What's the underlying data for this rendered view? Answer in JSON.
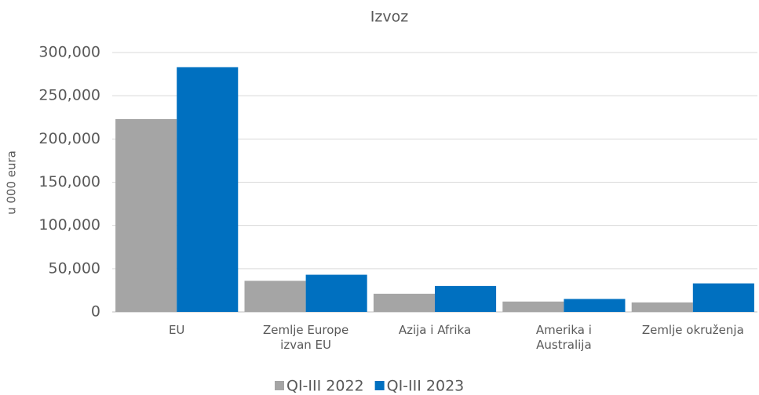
{
  "chart_data": {
    "type": "bar",
    "title": "Izvoz",
    "y_label": "u 000 eura",
    "categories": [
      "EU",
      "Zemlje Europe izvan EU",
      "Azija i Afrika",
      "Amerika i Australija",
      "Zemlje okruženja"
    ],
    "series": [
      {
        "name": "QI-III 2022",
        "color": "#a5a5a5",
        "values": [
          223000,
          36000,
          21000,
          12000,
          11000
        ]
      },
      {
        "name": "QI-III 2023",
        "color": "#0070c0",
        "values": [
          283000,
          43000,
          30000,
          15000,
          33000
        ]
      }
    ],
    "ylim": [
      0,
      300000
    ],
    "yticks": [
      0,
      {
        "value": 50000,
        "label": "50,000"
      },
      {
        "value": 100000,
        "label": "100,000"
      },
      {
        "value": 150000,
        "label": "150,000"
      },
      {
        "value": 200000,
        "label": "200,000"
      },
      {
        "value": 250000,
        "label": "250,000"
      },
      {
        "value": 300000,
        "label": "300,000"
      }
    ],
    "grid": true,
    "legend": "bottom"
  }
}
